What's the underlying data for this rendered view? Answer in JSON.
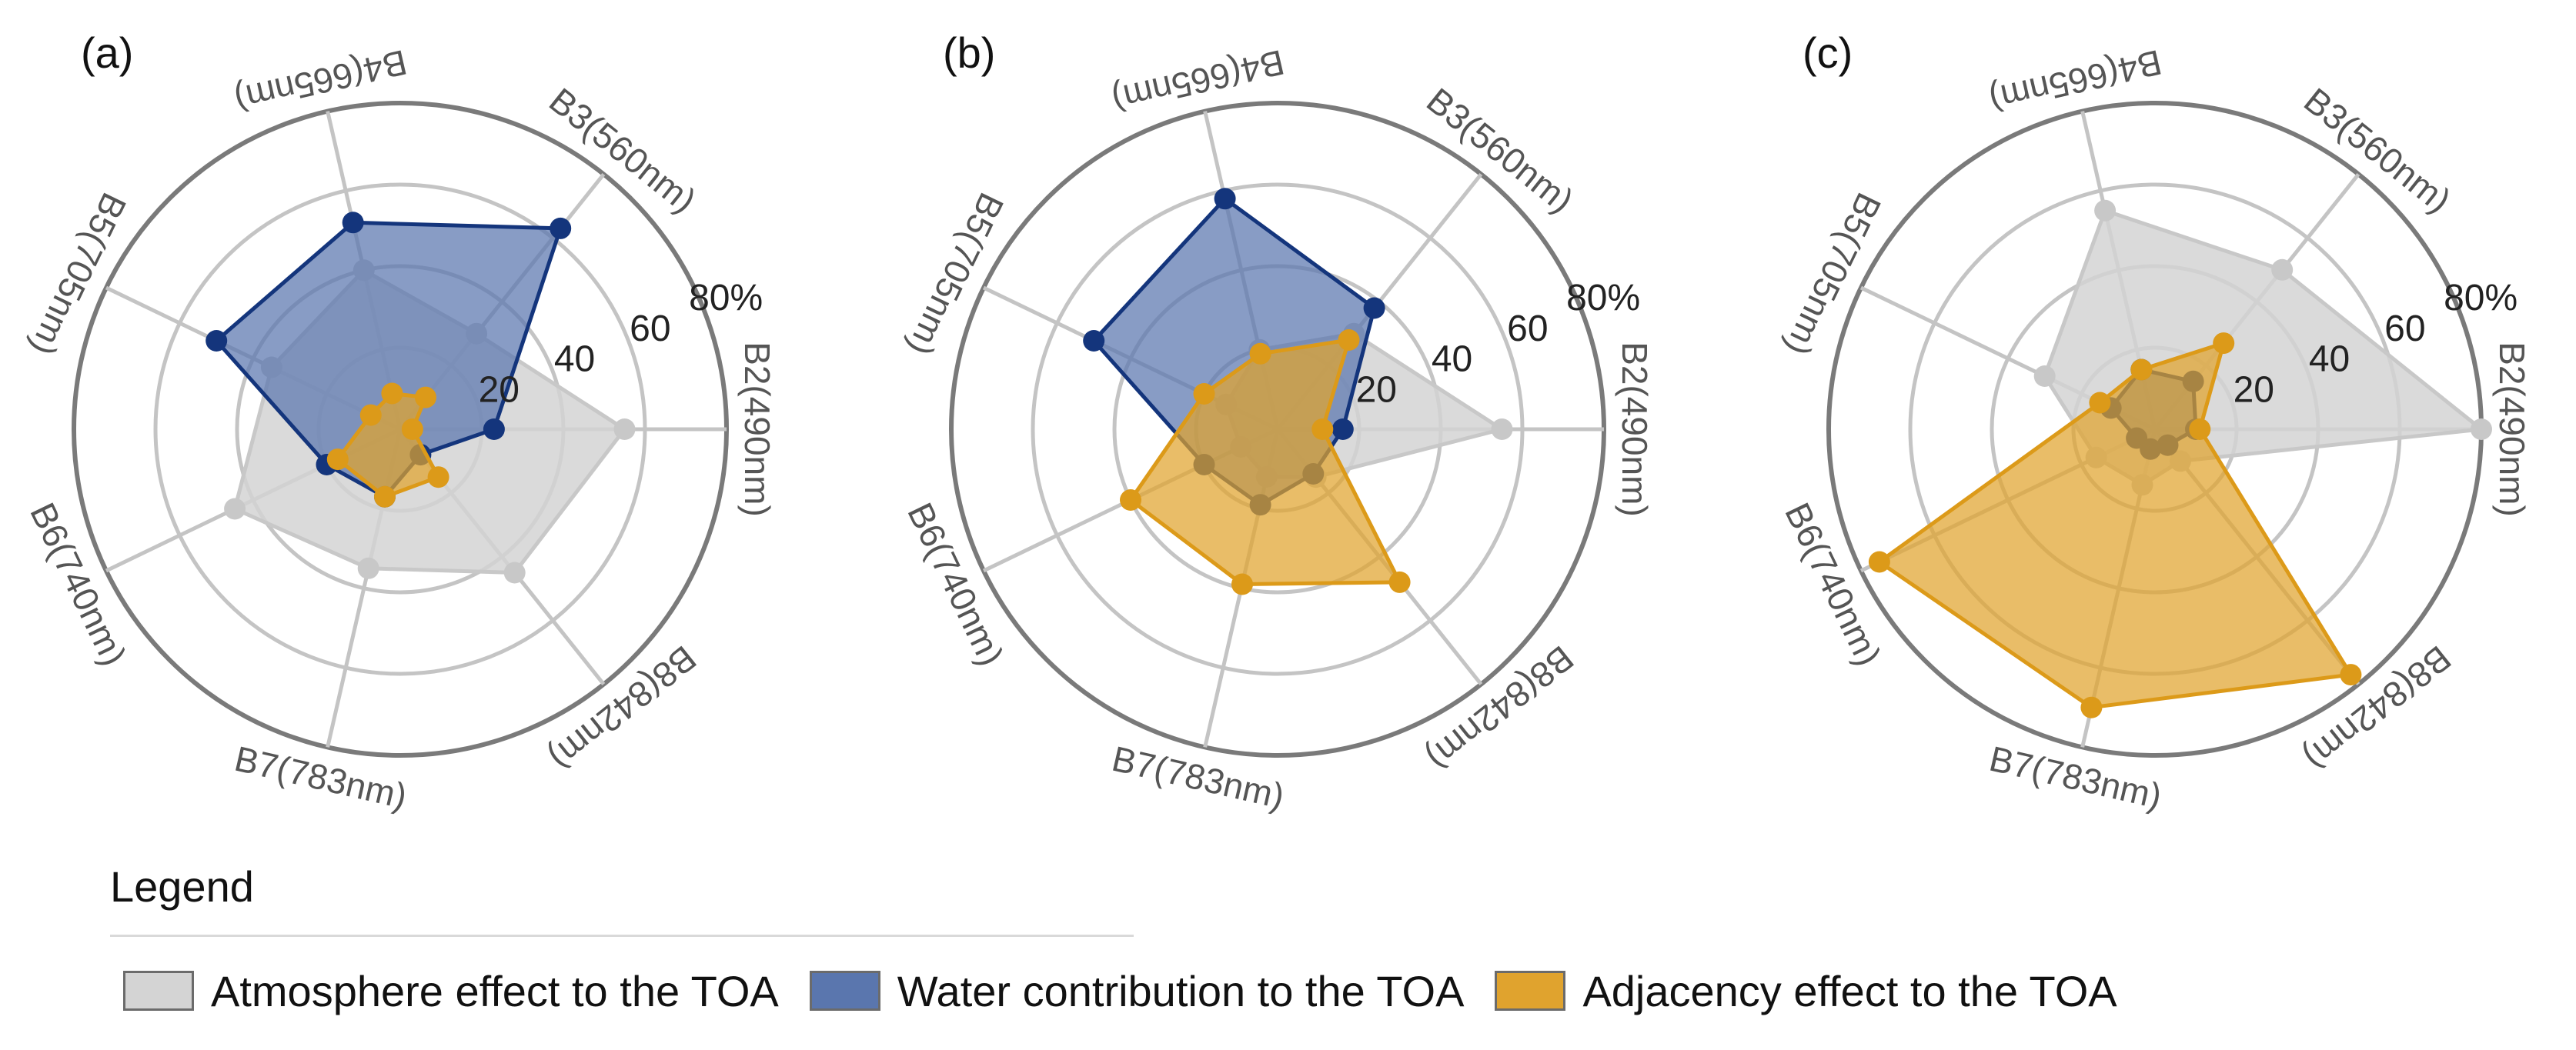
{
  "chart_data": {
    "type": "radar",
    "axes": [
      "B2(490nm)",
      "B3(560nm)",
      "B4(665nm)",
      "B5(705nm)",
      "B6(740nm)",
      "B7(783nm)",
      "B8(842nm)"
    ],
    "r_ticks": [
      "20",
      "40",
      "60",
      "80%"
    ],
    "r_max": 80,
    "series_meta": [
      {
        "name": "Atmosphere effect to the TOA",
        "fill": "#d4d4d4",
        "line": "#c8c8c8",
        "marker": "#c8c8c8"
      },
      {
        "name": "Water contribution to the TOA",
        "fill": "#5a76ae",
        "line": "#14357c",
        "marker": "#14357c"
      },
      {
        "name": "Adjacency effect to the TOA",
        "fill": "#e0a32e",
        "line": "#dc9a19",
        "marker": "#dc9a19"
      }
    ],
    "panels": [
      {
        "label": "(a)",
        "series": [
          {
            "name": "Atmosphere effect to the TOA",
            "values": [
              55,
              30,
              40,
              35,
              45,
              35,
              45
            ]
          },
          {
            "name": "Water contribution to the TOA",
            "values": [
              23,
              63,
              52,
              50,
              20,
              17,
              8
            ]
          },
          {
            "name": "Adjacency effect to the TOA",
            "values": [
              3,
              10,
              9,
              8,
              17,
              17,
              15
            ]
          }
        ]
      },
      {
        "label": "(b)",
        "series": [
          {
            "name": "Atmosphere effect to the TOA",
            "values": [
              55,
              30,
              20,
              14,
              10,
              12,
              15
            ]
          },
          {
            "name": "Water contribution to the TOA",
            "values": [
              16,
              38,
              58,
              50,
              20,
              19,
              14
            ]
          },
          {
            "name": "Adjacency effect to the TOA",
            "values": [
              11,
              28,
              19,
              20,
              40,
              39,
              48
            ]
          }
        ]
      },
      {
        "label": "(c)",
        "series": [
          {
            "name": "Atmosphere effect to the TOA",
            "values": [
              80,
              50,
              55,
              30,
              16,
              14,
              10
            ]
          },
          {
            "name": "Water contribution to the TOA",
            "values": [
              10,
              15,
              15,
              12,
              5,
              5,
              5
            ]
          },
          {
            "name": "Adjacency effect to the TOA",
            "values": [
              11,
              27,
              15,
              15,
              75,
              70,
              77
            ]
          }
        ]
      }
    ]
  },
  "legend": {
    "title": "Legend",
    "items": [
      {
        "label": "Atmosphere effect to the TOA",
        "color": "#d4d4d4"
      },
      {
        "label": "Water contribution to the TOA",
        "color": "#5a76ae"
      },
      {
        "label": "Adjacency effect to the TOA",
        "color": "#e0a32e"
      }
    ]
  }
}
